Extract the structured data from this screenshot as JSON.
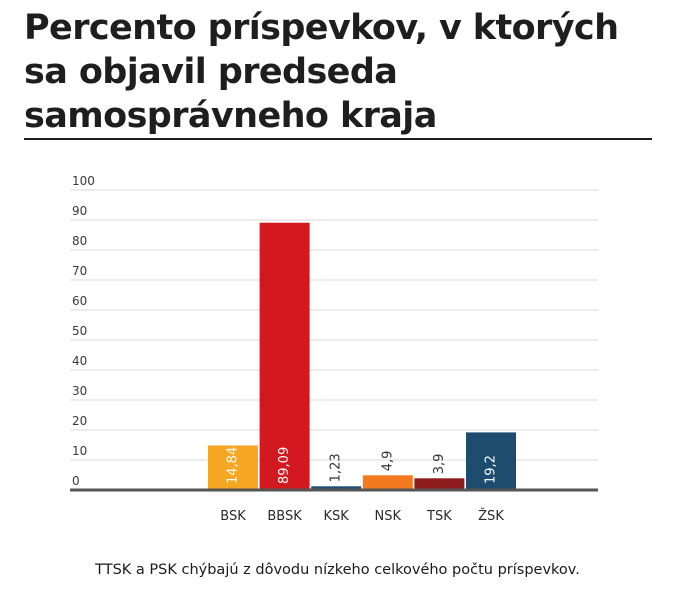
{
  "title": "Percento príspevkov, v ktorých sa objavil predseda samosprávneho kraja",
  "note": "TTSK a PSK chýbajú z dôvodu nízkeho celkového počtu príspevkov.",
  "colors": {
    "BSK": "#f5a623",
    "BBSK": "#d4181f",
    "KSK": "#1b4f72",
    "NSK": "#f47a1f",
    "TSK": "#8e1b1e",
    "ZSK": "#1d4c6e",
    "grid": "#d8d8d8",
    "axis": "#555555"
  },
  "chart_data": {
    "type": "bar",
    "title": "Percento príspevkov, v ktorých sa objavil predseda samosprávneho kraja",
    "categories": [
      "BSK",
      "BBSK",
      "KSK",
      "NSK",
      "TSK",
      "ŽSK"
    ],
    "values": [
      14.84,
      89.09,
      1.23,
      4.9,
      3.9,
      19.2
    ],
    "value_labels": [
      "14,84",
      "89,09",
      "1,23",
      "4,9",
      "3,9",
      "19,2"
    ],
    "bar_colors": [
      "#f5a623",
      "#d4181f",
      "#1b4f72",
      "#f47a1f",
      "#8e1b1e",
      "#1d4c6e"
    ],
    "label_colors": [
      "#ffffff",
      "#ffffff",
      "#333333",
      "#333333",
      "#333333",
      "#ffffff"
    ],
    "label_inside": [
      true,
      true,
      false,
      false,
      false,
      true
    ],
    "yticks": [
      "0",
      "10",
      "20",
      "30",
      "40",
      "50",
      "60",
      "70",
      "80",
      "90",
      "100"
    ],
    "ylim": [
      0,
      100
    ],
    "grid": true,
    "legend": "none",
    "xlabel": "",
    "ylabel": ""
  }
}
